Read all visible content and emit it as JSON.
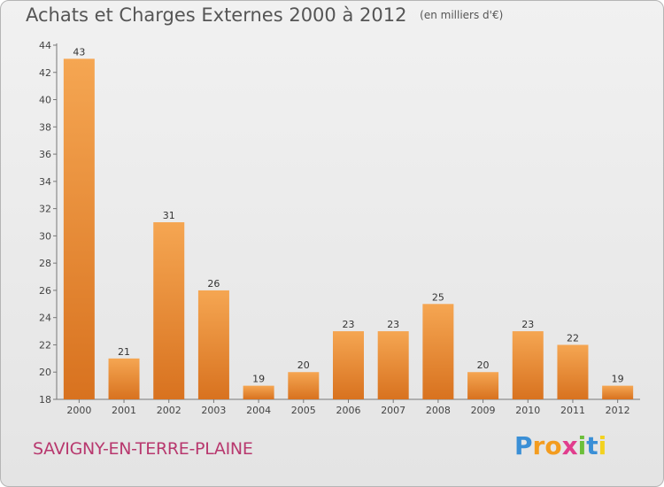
{
  "header": {
    "title": "Achats et Charges Externes 2000 à 2012",
    "unit": "(en milliers d'€)"
  },
  "footer": {
    "city": "SAVIGNY-EN-TERRE-PLAINE",
    "logo_letters": [
      "P",
      "r",
      "o",
      "x",
      "i",
      "t",
      "i"
    ],
    "logo_colors": [
      "#3a8fd6",
      "#f39c1f",
      "#f39c1f",
      "#e13d8d",
      "#6cbf3a",
      "#3a8fd6",
      "#f3d21f"
    ]
  },
  "colors": {
    "bar_light": "#f5a652",
    "bar_dark": "#d8721f"
  },
  "chart_data": {
    "type": "bar",
    "title": "Achats et Charges Externes 2000 à 2012",
    "subtitle": "(en milliers d'€)",
    "xlabel": "",
    "ylabel": "",
    "categories": [
      "2000",
      "2001",
      "2002",
      "2003",
      "2004",
      "2005",
      "2006",
      "2007",
      "2008",
      "2009",
      "2010",
      "2011",
      "2012"
    ],
    "values": [
      43,
      21,
      31,
      26,
      19,
      20,
      23,
      23,
      25,
      20,
      23,
      22,
      19
    ],
    "ylim": [
      18,
      44
    ],
    "yticks": [
      18,
      20,
      22,
      24,
      26,
      28,
      30,
      32,
      34,
      36,
      38,
      40,
      42,
      44
    ],
    "grid": false,
    "legend": "none"
  }
}
